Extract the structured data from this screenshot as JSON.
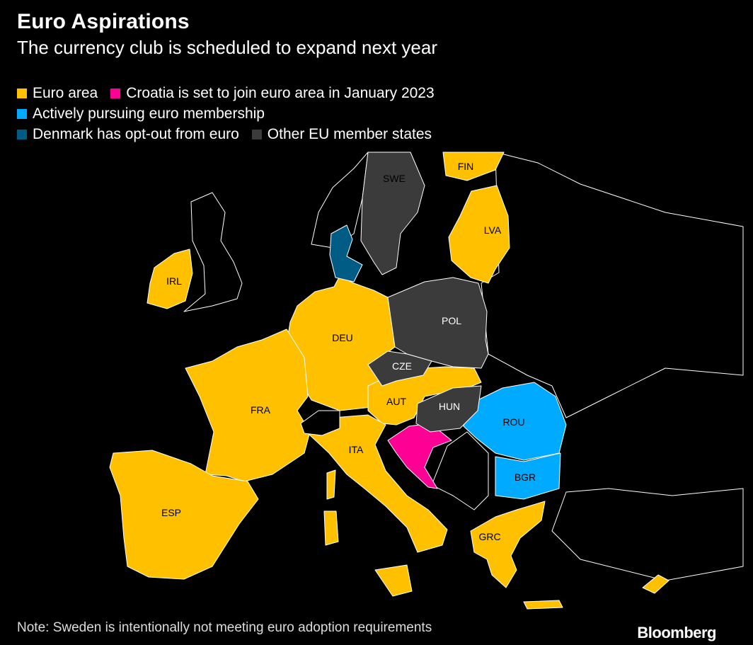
{
  "title": "Euro Aspirations",
  "subtitle": "The currency club is scheduled to expand next year",
  "colors": {
    "euro": "#FFC000",
    "croatia": "#FF0094",
    "pursuing": "#00AAFF",
    "denmark": "#005C85",
    "other_eu": "#3B3B3B",
    "non_eu": "#000000",
    "border": "#FFFFFF"
  },
  "legend": {
    "euro": "Euro area",
    "croatia": "Croatia is set to join euro area in January 2023",
    "pursuing": "Actively pursuing euro membership",
    "denmark": "Denmark has opt-out from euro",
    "other": "Other EU member states"
  },
  "labels": {
    "fin": "FIN",
    "swe": "SWE",
    "lva": "LVA",
    "irl": "IRL",
    "pol": "POL",
    "deu": "DEU",
    "cze": "CZE",
    "aut": "AUT",
    "hun": "HUN",
    "fra": "FRA",
    "rou": "ROU",
    "ita": "ITA",
    "bgr": "BGR",
    "esp": "ESP",
    "grc": "GRC"
  },
  "note": "Note: Sweden is intentionally not meeting euro adoption requirements",
  "source_logo": "Bloomberg"
}
